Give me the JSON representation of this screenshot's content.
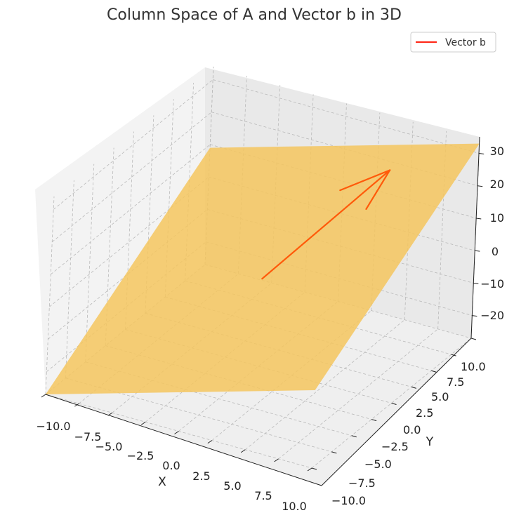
{
  "chart_data": {
    "type": "3d-surface",
    "title": "Column Space of A and Vector b in 3D",
    "xlabel": "X",
    "ylabel": "Y",
    "zlabel": "",
    "xlim": [
      -10,
      10
    ],
    "ylim": [
      -10,
      10
    ],
    "zlim": [
      -27,
      34
    ],
    "xticks": [
      "−10.0",
      "−7.5",
      "−5.0",
      "−2.5",
      "0.0",
      "2.5",
      "5.0",
      "7.5",
      "10.0"
    ],
    "yticks": [
      "−10.0",
      "−7.5",
      "−5.0",
      "−2.5",
      "0.0",
      "2.5",
      "5.0",
      "7.5",
      "10.0"
    ],
    "zticks": [
      "−20",
      "−10",
      "0",
      "10",
      "20",
      "30"
    ],
    "grid": true,
    "legend": {
      "position": "top-right",
      "entries": [
        {
          "label": "Vector b",
          "color": "#ff2a1a"
        }
      ]
    },
    "plane": {
      "name": "Column Space of A",
      "color": "#f5c55e",
      "corners": [
        {
          "x": -10,
          "y": -10,
          "z": -27
        },
        {
          "x": 10,
          "y": -10,
          "z": -3
        },
        {
          "x": 10,
          "y": 10,
          "z": 33
        },
        {
          "x": -10,
          "y": 10,
          "z": 9
        }
      ]
    },
    "vector": {
      "name": "Vector b",
      "color": "#ff5a0a",
      "origin": {
        "x": 0,
        "y": 0,
        "z": 0
      },
      "tip": {
        "x": 4,
        "y": 9,
        "z": 20
      }
    }
  }
}
